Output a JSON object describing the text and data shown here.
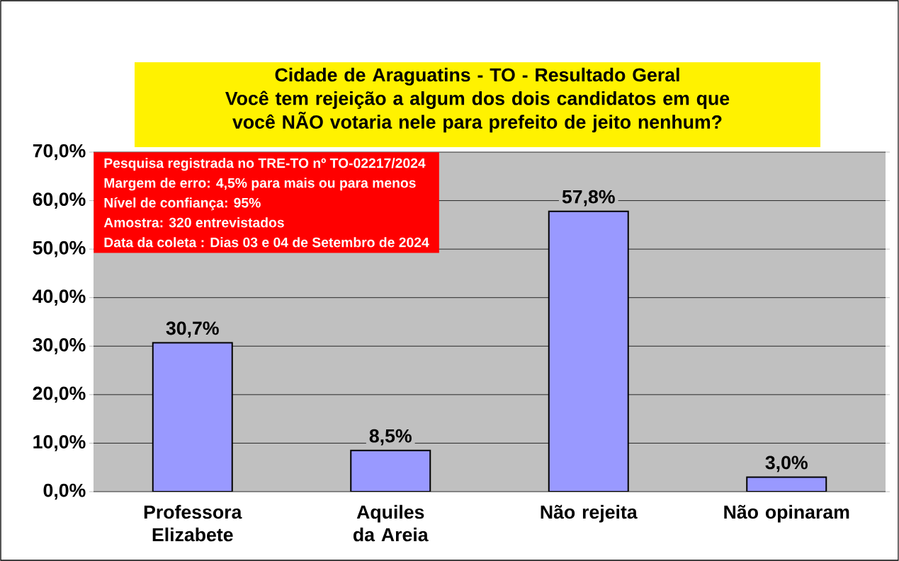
{
  "chart_data": {
    "type": "bar",
    "title": "Cidade de Araguatins - TO - Resultado Geral",
    "subtitle": "Você tem rejeição a algum dos dois candidatos em que você NÃO votaria nele para prefeito de jeito nenhum?",
    "categories": [
      "Professora Elizabete",
      "Aquiles da Areia",
      "Não rejeita",
      "Não opinaram"
    ],
    "values": [
      30.7,
      8.5,
      57.8,
      3.0
    ],
    "value_labels": [
      "30,7%",
      "8,5%",
      "57,8%",
      "3,0%"
    ],
    "color": "#9999ff",
    "ylim": [
      0,
      70
    ],
    "yticks": [
      {
        "value": 0,
        "label": "0,0%"
      },
      {
        "value": 10,
        "label": "10,0%"
      },
      {
        "value": 20,
        "label": "20,0%"
      },
      {
        "value": 30,
        "label": "30,0%"
      },
      {
        "value": 40,
        "label": "40,0%"
      },
      {
        "value": 50,
        "label": "50,0%"
      },
      {
        "value": 60,
        "label": "60,0%"
      },
      {
        "value": 70,
        "label": "70,0%"
      }
    ],
    "grid": "y",
    "annotations": [
      "Pesquisa registrada no TRE-TO nº TO-02217/2024",
      "Margem de erro: 4,5% para mais ou para menos",
      "Nível de confiança: 95%",
      "Amostra: 320 entrevistados",
      "Data da coleta : Dias 03 e 04 de Setembro de 2024"
    ]
  }
}
